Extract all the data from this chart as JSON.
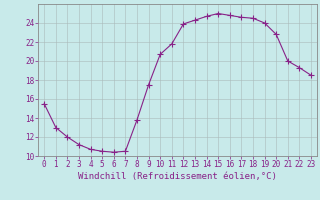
{
  "x": [
    0,
    1,
    2,
    3,
    4,
    5,
    6,
    7,
    8,
    9,
    10,
    11,
    12,
    13,
    14,
    15,
    16,
    17,
    18,
    19,
    20,
    21,
    22,
    23
  ],
  "y": [
    15.5,
    13.0,
    12.0,
    11.2,
    10.7,
    10.5,
    10.4,
    10.5,
    13.8,
    17.5,
    20.7,
    21.8,
    23.9,
    24.3,
    24.7,
    25.0,
    24.8,
    24.6,
    24.5,
    24.0,
    22.8,
    20.0,
    19.3,
    18.5
  ],
  "line_color": "#882288",
  "marker": "+",
  "marker_size": 4,
  "marker_linewidth": 0.8,
  "line_width": 0.8,
  "background_color": "#c8eaea",
  "grid_color": "#aabbbb",
  "xlabel": "Windchill (Refroidissement éolien,°C)",
  "ylim": [
    10,
    26
  ],
  "xlim": [
    -0.5,
    23.5
  ],
  "yticks": [
    10,
    12,
    14,
    16,
    18,
    20,
    22,
    24
  ],
  "xticks": [
    0,
    1,
    2,
    3,
    4,
    5,
    6,
    7,
    8,
    9,
    10,
    11,
    12,
    13,
    14,
    15,
    16,
    17,
    18,
    19,
    20,
    21,
    22,
    23
  ],
  "tick_color": "#882288",
  "tick_fontsize": 5.5,
  "xlabel_fontsize": 6.5,
  "axis_color": "#882288",
  "spine_color": "#888888"
}
